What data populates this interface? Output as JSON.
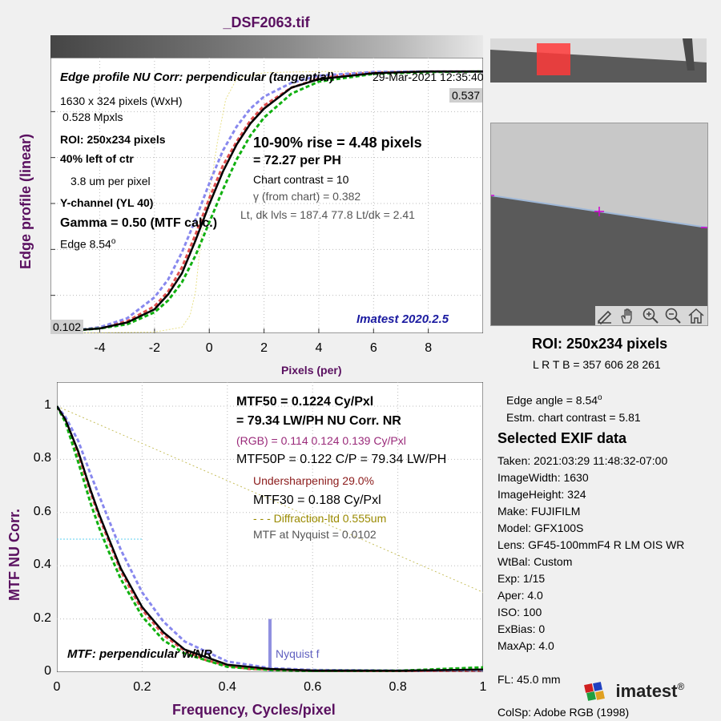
{
  "file_title": "_DSF2063.tif",
  "edge": {
    "ylabel": "Edge profile (linear)",
    "xlabel": "Pixels (per)",
    "heading": "Edge profile  NU Corr: perpendicular (tangential)",
    "timestamp": "29-Mar-2021 12:35:40",
    "info": [
      "1630 x 324 pixels (WxH)",
      "0.528 Mpxls",
      "ROI:  250x234 pixels",
      "40% left of ctr",
      "3.8 um per pixel",
      "Y-channel  (YL 40)",
      "Gamma = 0.50 (MTF calc.)",
      "Edge  8.54",
      "o"
    ],
    "rise": "10-90% rise = 4.48 pixels",
    "per_ph": "=  72.27 per PH",
    "contrast": "Chart contrast = 10",
    "gamma_chart": "γ (from chart) = 0.382",
    "levels": "Lt, dk lvls = 187.4  77.8  Lt/dk = 2.41",
    "version": "Imatest 2020.2.5",
    "max_label": "0.537",
    "min_label": "0.102",
    "x_ticks": [
      "-4",
      "-2",
      "0",
      "2",
      "4",
      "6",
      "8"
    ]
  },
  "mtf": {
    "ylabel": "MTF  NU Corr.",
    "xlabel": "Frequency, Cycles/pixel",
    "mtf50": "MTF50 = 0.1224 Cy/Pxl",
    "mtf50_lw": "= 79.34 LW/PH  NU Corr.  NR",
    "rgb": "(RGB) = 0.114  0.124  0.139 Cy/Pxl",
    "mtf50p": "MTF50P = 0.122 C/P = 79.34 LW/PH",
    "undersharp": "Undersharpening 29.0%",
    "mtf30": "MTF30 = 0.188 Cy/Pxl",
    "diffraction": "- - - Diffraction-ltd  0.555um",
    "nyquist_mtf": "MTF at Nyquist = 0.0102",
    "footer": "MTF: perpendicular w/NR",
    "nyquist_label": "Nyquist f",
    "x_ticks": [
      "0",
      "0.2",
      "0.4",
      "0.6",
      "0.8",
      "1"
    ],
    "y_ticks": [
      "0",
      "0.2",
      "0.4",
      "0.6",
      "0.8",
      "1"
    ]
  },
  "roi_panel": {
    "title": "ROI:  250x234 pixels",
    "coords": "L R  T B = 357 606  28 261"
  },
  "right_info": {
    "edge_angle": "Edge angle = 8.54",
    "deg": "o",
    "est_contrast": "Estm. chart contrast = 5.81",
    "exif_title": "Selected EXIF data",
    "exif": [
      "Taken: 2021:03:29 11:48:32-07:00",
      "ImageWidth:  1630",
      "ImageHeight:  324",
      "Make:  FUJIFILM",
      "Model:  GFX100S",
      "Lens:   GF45-100mmF4 R LM OIS WR",
      "WtBal:  Custom",
      "Exp:    1/15",
      "Aper:   4.0",
      "ISO:    100",
      "ExBias:  0",
      "MaxAp:  4.0"
    ],
    "fl": "FL:     45.0 mm",
    "colsp": "ColSp:  Adobe RGB (1998)"
  },
  "logo": "imatest",
  "logo_reg": "®",
  "colors": {
    "title": "#5a1060",
    "red": "#e05050",
    "green": "#10b010",
    "blue": "#8888ee",
    "version": "#1a1aa0",
    "undersharp": "#8b1a1a",
    "diffraction": "#9a8a00",
    "rgb": "#9a2a7a"
  },
  "chart_data": [
    {
      "type": "line",
      "title": "Edge profile  NU Corr: perpendicular (tangential)",
      "xlabel": "Pixels (per)",
      "ylabel": "Edge profile (linear)",
      "xlim": [
        -5.8,
        10
      ],
      "ylim": [
        0.1,
        0.56
      ],
      "series": [
        {
          "x": [
            -5.8,
            -5,
            -4,
            -3,
            -2,
            -1.5,
            -1,
            -0.5,
            0,
            0.5,
            1,
            1.5,
            2,
            3,
            4,
            5,
            6,
            7,
            8,
            10
          ],
          "y": [
            0.102,
            0.104,
            0.11,
            0.12,
            0.145,
            0.17,
            0.21,
            0.265,
            0.325,
            0.38,
            0.42,
            0.455,
            0.48,
            0.51,
            0.525,
            0.532,
            0.535,
            0.536,
            0.537,
            0.537
          ]
        },
        {
          "x": [
            -5.8,
            -4,
            -3,
            -2,
            -1.5,
            -1,
            -0.5,
            0,
            0.5,
            1,
            1.5,
            2,
            3,
            4,
            6,
            8,
            10
          ],
          "y": [
            0.102,
            0.108,
            0.115,
            0.135,
            0.155,
            0.185,
            0.23,
            0.285,
            0.34,
            0.39,
            0.43,
            0.46,
            0.5,
            0.52,
            0.533,
            0.536,
            0.537
          ]
        },
        {
          "x": [
            -5.8,
            -4,
            -3,
            -2,
            -1.5,
            -1,
            -0.5,
            0,
            0.5,
            1,
            1.5,
            2,
            3,
            4,
            6,
            8,
            10
          ],
          "y": [
            0.102,
            0.108,
            0.118,
            0.14,
            0.165,
            0.2,
            0.255,
            0.315,
            0.37,
            0.415,
            0.45,
            0.475,
            0.51,
            0.524,
            0.534,
            0.537,
            0.537
          ]
        },
        {
          "x": [
            -5.8,
            -4,
            -3,
            -2,
            -1.5,
            -1,
            -0.5,
            0,
            0.5,
            1,
            1.5,
            2,
            3,
            4,
            6,
            8,
            10
          ],
          "y": [
            0.1,
            0.11,
            0.125,
            0.16,
            0.19,
            0.235,
            0.29,
            0.35,
            0.405,
            0.445,
            0.475,
            0.495,
            0.518,
            0.53,
            0.536,
            0.537,
            0.537
          ]
        },
        {
          "x": [
            -5.8,
            -2,
            -1,
            -0.7,
            -0.5,
            -0.3,
            0,
            0.3,
            0.6,
            1,
            2,
            4,
            10
          ],
          "y": [
            0.1,
            0.102,
            0.11,
            0.13,
            0.17,
            0.26,
            0.33,
            0.42,
            0.49,
            0.525,
            0.535,
            0.537,
            0.537
          ]
        }
      ]
    },
    {
      "type": "line",
      "title": "MTF: perpendicular w/NR",
      "xlabel": "Frequency, Cycles/pixel",
      "ylabel": "MTF  NU Corr.",
      "xlim": [
        0,
        1
      ],
      "ylim": [
        0,
        1
      ],
      "series": [
        {
          "x": [
            0,
            0.02,
            0.05,
            0.08,
            0.1,
            0.12,
            0.15,
            0.18,
            0.2,
            0.25,
            0.3,
            0.35,
            0.4,
            0.45,
            0.5,
            0.6,
            0.8,
            1
          ],
          "y": [
            1,
            0.95,
            0.82,
            0.67,
            0.58,
            0.5,
            0.38,
            0.29,
            0.235,
            0.14,
            0.08,
            0.045,
            0.025,
            0.012,
            0.01,
            0.006,
            0.004,
            0.006
          ]
        },
        {
          "x": [
            0,
            0.02,
            0.05,
            0.08,
            0.1,
            0.12,
            0.15,
            0.2,
            0.25,
            0.3,
            0.4,
            0.5,
            0.6,
            0.8,
            1
          ],
          "y": [
            1,
            0.94,
            0.79,
            0.63,
            0.54,
            0.46,
            0.35,
            0.21,
            0.12,
            0.07,
            0.02,
            0.008,
            0.005,
            0.005,
            0.018
          ]
        },
        {
          "x": [
            0,
            0.02,
            0.05,
            0.08,
            0.1,
            0.12,
            0.15,
            0.2,
            0.25,
            0.3,
            0.4,
            0.5,
            0.6,
            0.8,
            1
          ],
          "y": [
            1,
            0.95,
            0.83,
            0.68,
            0.59,
            0.51,
            0.39,
            0.245,
            0.15,
            0.085,
            0.028,
            0.012,
            0.006,
            0.005,
            0.01
          ]
        },
        {
          "x": [
            0,
            0.02,
            0.05,
            0.08,
            0.1,
            0.12,
            0.15,
            0.2,
            0.25,
            0.3,
            0.4,
            0.5,
            0.6,
            0.8,
            1
          ],
          "y": [
            1,
            0.96,
            0.87,
            0.74,
            0.66,
            0.58,
            0.46,
            0.3,
            0.19,
            0.115,
            0.04,
            0.015,
            0.008,
            0.006,
            0.008
          ]
        },
        {
          "x": [
            0,
            1
          ],
          "y": [
            1,
            0.3
          ]
        },
        {
          "x": [
            0,
            0.2
          ],
          "y": [
            0.5,
            0.5
          ]
        }
      ]
    }
  ]
}
